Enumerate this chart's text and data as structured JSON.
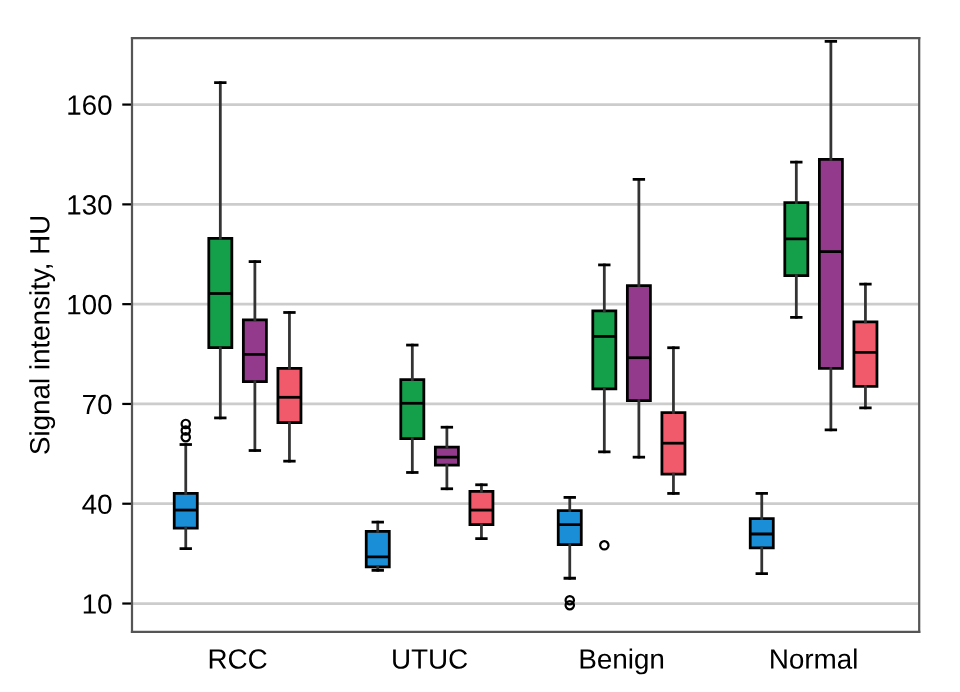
{
  "chart_data": {
    "type": "box",
    "ylabel": "Signal intensity, HU",
    "categories": [
      "RCC",
      "UTUC",
      "Benign",
      "Normal"
    ],
    "ylim": [
      1.5,
      180
    ],
    "yticks": [
      10,
      40,
      70,
      100,
      130,
      160
    ],
    "grid": "y",
    "series": [
      {
        "color": "#1a8fd8",
        "boxes": [
          {
            "low": 26.5,
            "q1": 32.7,
            "median": 38.1,
            "q3": 43.1,
            "high": 57.8,
            "outliers": [
              60,
              62,
              64
            ]
          },
          {
            "low": 20,
            "q1": 21,
            "median": 24,
            "q3": 31.7,
            "high": 34.5
          },
          {
            "low": 17.6,
            "q1": 27.7,
            "median": 33.7,
            "q3": 37.9,
            "high": 41.9,
            "outliers": [
              9.5,
              11
            ]
          },
          {
            "low": 19,
            "q1": 26.7,
            "median": 30.9,
            "q3": 35.5,
            "high": 43.1
          }
        ]
      },
      {
        "color": "#14a04a",
        "boxes": [
          {
            "low": 65.8,
            "q1": 86.9,
            "median": 103.2,
            "q3": 119.8,
            "high": 166.6
          },
          {
            "low": 49.4,
            "q1": 59.6,
            "median": 70.2,
            "q3": 77.3,
            "high": 87.7
          },
          {
            "low": 55.6,
            "q1": 74.5,
            "median": 90.3,
            "q3": 98,
            "high": 111.8,
            "outliers": [
              27.5
            ]
          },
          {
            "low": 96,
            "q1": 108.6,
            "median": 119.6,
            "q3": 130.5,
            "high": 142.7
          }
        ]
      },
      {
        "color": "#943a8c",
        "boxes": [
          {
            "low": 56,
            "q1": 76.7,
            "median": 84.9,
            "q3": 95.3,
            "high": 112.8
          },
          {
            "low": 44.5,
            "q1": 51.6,
            "median": 54,
            "q3": 57,
            "high": 63
          },
          {
            "low": 54,
            "q1": 71,
            "median": 83.9,
            "q3": 105.6,
            "high": 137.5
          },
          {
            "low": 62.2,
            "q1": 80.7,
            "median": 115.8,
            "q3": 143.5,
            "high": 179
          }
        ]
      },
      {
        "color": "#f05a6a",
        "boxes": [
          {
            "low": 52.8,
            "q1": 64.4,
            "median": 72,
            "q3": 80.7,
            "high": 97.5
          },
          {
            "low": 29.5,
            "q1": 33.7,
            "median": 38.1,
            "q3": 43.7,
            "high": 45.7
          },
          {
            "low": 43.1,
            "q1": 48.9,
            "median": 58.2,
            "q3": 67.4,
            "high": 86.9
          },
          {
            "low": 68.8,
            "q1": 75.3,
            "median": 85.5,
            "q3": 94.7,
            "high": 106
          }
        ]
      }
    ]
  }
}
